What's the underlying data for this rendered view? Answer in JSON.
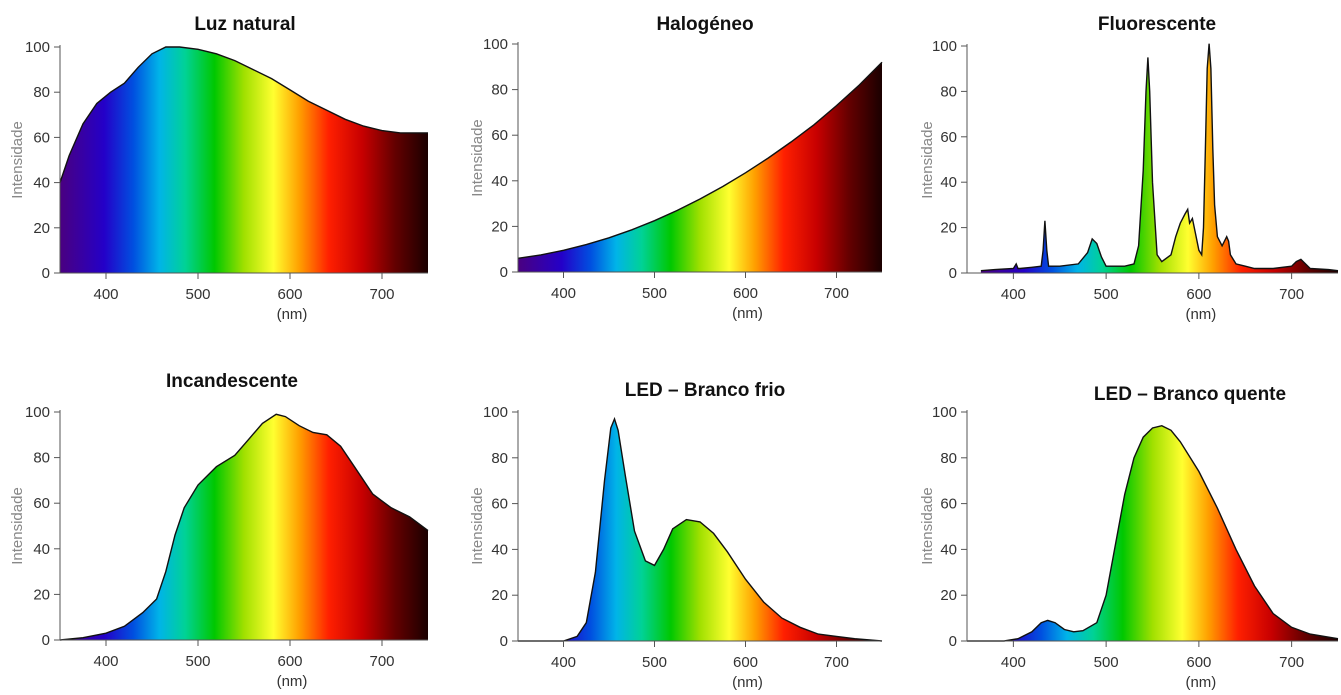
{
  "chart_data": [
    {
      "type": "area",
      "title": "Luz natural",
      "ylabel": "Intensidade",
      "xlabel": "(nm)",
      "xlim": [
        350,
        750
      ],
      "ylim": [
        0,
        100
      ],
      "xticks": [
        400,
        500,
        600,
        700
      ],
      "yticks": [
        0,
        20,
        40,
        60,
        80,
        100
      ],
      "series": [
        {
          "x": [
            350,
            360,
            375,
            390,
            405,
            420,
            435,
            450,
            465,
            480,
            500,
            520,
            540,
            560,
            580,
            600,
            620,
            640,
            660,
            680,
            700,
            720,
            735,
            750
          ],
          "y": [
            40,
            52,
            66,
            75,
            80,
            84,
            91,
            97,
            100,
            100,
            99,
            97,
            94,
            90,
            86,
            81,
            76,
            72,
            68,
            65,
            63,
            62,
            62,
            62
          ]
        }
      ]
    },
    {
      "type": "area",
      "title": "Halogéneo",
      "ylabel": "Intensidade",
      "xlabel": "(nm)",
      "xlim": [
        350,
        750
      ],
      "ylim": [
        0,
        100
      ],
      "xticks": [
        400,
        500,
        600,
        700
      ],
      "yticks": [
        0,
        20,
        40,
        60,
        80,
        100
      ],
      "series": [
        {
          "x": [
            350,
            375,
            400,
            425,
            450,
            475,
            500,
            525,
            550,
            575,
            600,
            625,
            650,
            675,
            700,
            725,
            750
          ],
          "y": [
            6,
            7.5,
            9.5,
            12,
            15,
            18.5,
            22.5,
            27,
            32,
            37.5,
            43.5,
            50,
            57,
            64.5,
            73,
            82,
            92
          ]
        }
      ]
    },
    {
      "type": "area",
      "title": "Fluorescente",
      "ylabel": "Intensidade",
      "xlabel": "(nm)",
      "xlim": [
        350,
        750
      ],
      "ylim": [
        0,
        100
      ],
      "xticks": [
        400,
        500,
        600,
        700
      ],
      "yticks": [
        0,
        20,
        40,
        60,
        80,
        100
      ],
      "series": [
        {
          "x": [
            365,
            380,
            400,
            403,
            405,
            407,
            420,
            430,
            432,
            434,
            436,
            438,
            450,
            470,
            480,
            485,
            490,
            495,
            500,
            520,
            530,
            535,
            540,
            543,
            545,
            547,
            550,
            555,
            560,
            570,
            575,
            580,
            585,
            588,
            590,
            593,
            596,
            600,
            603,
            605,
            607,
            609,
            611,
            613,
            615,
            617,
            620,
            625,
            630,
            632,
            634,
            640,
            650,
            660,
            680,
            700,
            705,
            710,
            715,
            720,
            740,
            750
          ],
          "y": [
            1,
            1.5,
            2,
            4,
            2,
            2,
            2.5,
            3,
            10,
            23,
            10,
            3,
            3,
            4,
            9,
            15,
            13,
            7,
            3,
            3,
            4,
            12,
            45,
            80,
            95,
            80,
            40,
            8,
            5,
            8,
            16,
            22,
            26,
            28,
            22,
            24,
            18,
            10,
            8,
            20,
            55,
            90,
            101,
            90,
            55,
            30,
            16,
            12,
            16,
            14,
            8,
            4,
            3,
            2,
            2,
            3,
            5,
            6,
            4,
            2,
            1.5,
            1
          ]
        }
      ]
    },
    {
      "type": "area",
      "title": "Incandescente",
      "ylabel": "Intensidade",
      "xlabel": "(nm)",
      "xlim": [
        350,
        750
      ],
      "ylim": [
        0,
        100
      ],
      "xticks": [
        400,
        500,
        600,
        700
      ],
      "yticks": [
        0,
        20,
        40,
        60,
        80,
        100
      ],
      "series": [
        {
          "x": [
            350,
            375,
            400,
            420,
            440,
            455,
            465,
            475,
            485,
            500,
            520,
            540,
            555,
            570,
            585,
            595,
            610,
            625,
            640,
            655,
            670,
            690,
            710,
            730,
            750
          ],
          "y": [
            0,
            1,
            3,
            6,
            12,
            18,
            30,
            46,
            58,
            68,
            76,
            81,
            88,
            95,
            99,
            98,
            94,
            91,
            90,
            85,
            76,
            64,
            58,
            54,
            48
          ]
        }
      ]
    },
    {
      "type": "area",
      "title": "LED – Branco frio",
      "ylabel": "Intensidade",
      "xlabel": "(nm)",
      "xlim": [
        350,
        750
      ],
      "ylim": [
        0,
        100
      ],
      "xticks": [
        400,
        500,
        600,
        700
      ],
      "yticks": [
        0,
        20,
        40,
        60,
        80,
        100
      ],
      "series": [
        {
          "x": [
            350,
            400,
            415,
            425,
            435,
            445,
            452,
            456,
            460,
            468,
            478,
            490,
            500,
            510,
            520,
            535,
            550,
            565,
            580,
            600,
            620,
            640,
            660,
            680,
            700,
            720,
            750
          ],
          "y": [
            0,
            0,
            2,
            8,
            30,
            70,
            93,
            97,
            92,
            72,
            48,
            35,
            33,
            40,
            49,
            53,
            52,
            47,
            39,
            27,
            17,
            10,
            6,
            3,
            2,
            1,
            0
          ]
        }
      ]
    },
    {
      "type": "area",
      "title": "LED – Branco quente",
      "ylabel": "Intensidade",
      "xlabel": "(nm)",
      "xlim": [
        350,
        750
      ],
      "ylim": [
        0,
        100
      ],
      "xticks": [
        400,
        500,
        600,
        700
      ],
      "yticks": [
        0,
        20,
        40,
        60,
        80,
        100
      ],
      "series": [
        {
          "x": [
            350,
            390,
            405,
            420,
            430,
            437,
            445,
            455,
            465,
            475,
            490,
            500,
            510,
            520,
            530,
            540,
            550,
            560,
            570,
            580,
            600,
            620,
            640,
            660,
            680,
            700,
            720,
            750
          ],
          "y": [
            0,
            0,
            1,
            4,
            8,
            9,
            8,
            5,
            4,
            4.5,
            8,
            20,
            42,
            64,
            80,
            89,
            93,
            94,
            92,
            87,
            74,
            58,
            40,
            24,
            12,
            6,
            3,
            1
          ]
        }
      ]
    }
  ]
}
